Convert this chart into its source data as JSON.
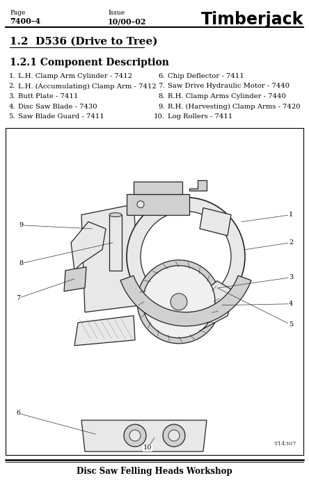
{
  "page_label": "Page",
  "page_number": "7400–4",
  "issue_label": "Issue",
  "issue_number": "10/00–02",
  "brand": "Timberjack",
  "section_title": "1.2  D536 (Drive to Tree)",
  "subsection_title": "1.2.1 Component Description",
  "list_left": [
    [
      "1.",
      "L.H. Clamp Arm Cylinder - 7412"
    ],
    [
      "2.",
      "L.H. (Accumulating) Clamp Arm - 7412"
    ],
    [
      "3.",
      "Butt Plate - 7411"
    ],
    [
      "4.",
      "Disc Saw Blade - 7430"
    ],
    [
      "5.",
      "Saw Blade Guard - 7411"
    ]
  ],
  "list_right": [
    [
      "6.",
      "Chip Deflector - 7411"
    ],
    [
      "7.",
      "Saw Drive Hydraulic Motor - 7440"
    ],
    [
      "8.",
      "R.H. Clamp Arms Cylinder - 7440"
    ],
    [
      "9.",
      "R.H. (Harvesting) Clamp Arms - 7420"
    ],
    [
      "10.",
      "Log Rollers - 7411"
    ]
  ],
  "diagram_ref": "T14307",
  "footer_text": "Disc Saw Felling Heads Workshop",
  "bg_color": "#ffffff",
  "text_color": "#000000",
  "border_color": "#000000"
}
